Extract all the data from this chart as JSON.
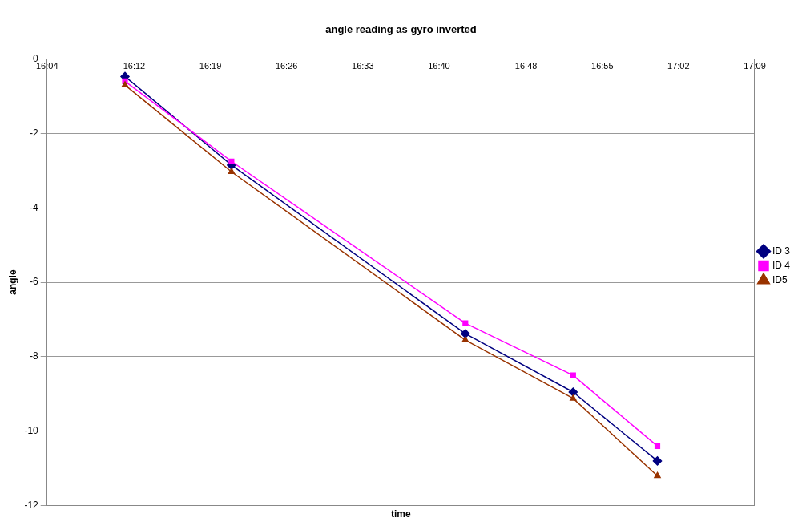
{
  "chart_data": {
    "type": "line",
    "title": "angle reading as gyro inverted",
    "xlabel": "time",
    "ylabel": "angle",
    "x": [
      16.186,
      16.349,
      16.707,
      16.872,
      17.001
    ],
    "xlim": [
      16.0667,
      17.15
    ],
    "xticks": [
      {
        "value": 16.0667,
        "label": "16:04"
      },
      {
        "value": 16.2,
        "label": "16:12"
      },
      {
        "value": 16.3167,
        "label": "16:19"
      },
      {
        "value": 16.4333,
        "label": "16:26"
      },
      {
        "value": 16.55,
        "label": "16:33"
      },
      {
        "value": 16.6667,
        "label": "16:40"
      },
      {
        "value": 16.8,
        "label": "16:48"
      },
      {
        "value": 16.9167,
        "label": "16:55"
      },
      {
        "value": 17.0333,
        "label": "17:02"
      },
      {
        "value": 17.15,
        "label": "17:09"
      }
    ],
    "ylim": [
      -12,
      0
    ],
    "yticks": [
      -12,
      -10,
      -8,
      -6,
      -4,
      -2,
      0
    ],
    "grid": "y",
    "legend": "right",
    "series": [
      {
        "name": "ID 3",
        "color": "#000080",
        "marker": "diamond",
        "values": [
          -0.47,
          -2.85,
          -7.38,
          -8.95,
          -10.8
        ]
      },
      {
        "name": "ID 4",
        "color": "#ff00ff",
        "marker": "square",
        "values": [
          -0.6,
          -2.75,
          -7.1,
          -8.5,
          -10.4
        ]
      },
      {
        "name": "ID5",
        "color": "#993300",
        "marker": "triangle",
        "values": [
          -0.7,
          -3.03,
          -7.55,
          -9.12,
          -11.2
        ]
      }
    ]
  }
}
